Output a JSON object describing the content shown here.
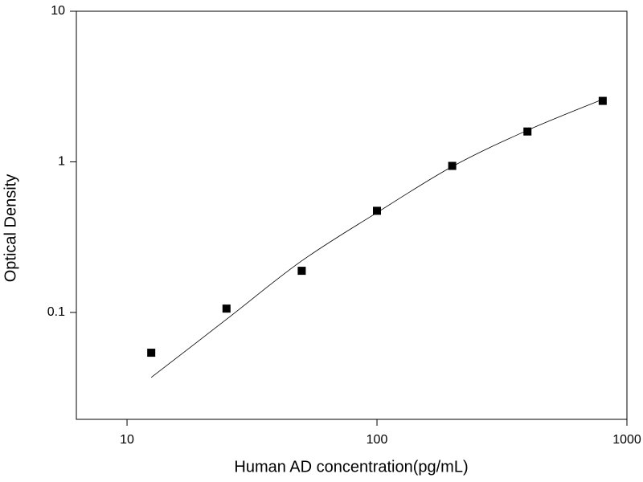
{
  "chart_data": {
    "type": "scatter",
    "x_label": "Human AD concentration(pg/mL)",
    "y_label": "Optical Density",
    "x": [
      12.5,
      25,
      50,
      100,
      200,
      400,
      800
    ],
    "series": [
      {
        "type": "scatter",
        "color": "#000000",
        "values": [
          0.054,
          0.106,
          0.189,
          0.473,
          0.94,
          1.59,
          2.54
        ]
      },
      {
        "type": "line",
        "color": "#000000",
        "values": [
          0.037,
          0.09,
          0.22,
          0.46,
          0.93,
          1.62,
          2.6
        ]
      }
    ],
    "xscale": "log",
    "yscale": "log",
    "xlim": [
      6.27,
      1000
    ],
    "ylim": [
      0.0195,
      10
    ],
    "xticks": [
      10,
      100,
      1000
    ],
    "yticks": [
      0.1,
      1,
      10
    ],
    "grid": false
  }
}
